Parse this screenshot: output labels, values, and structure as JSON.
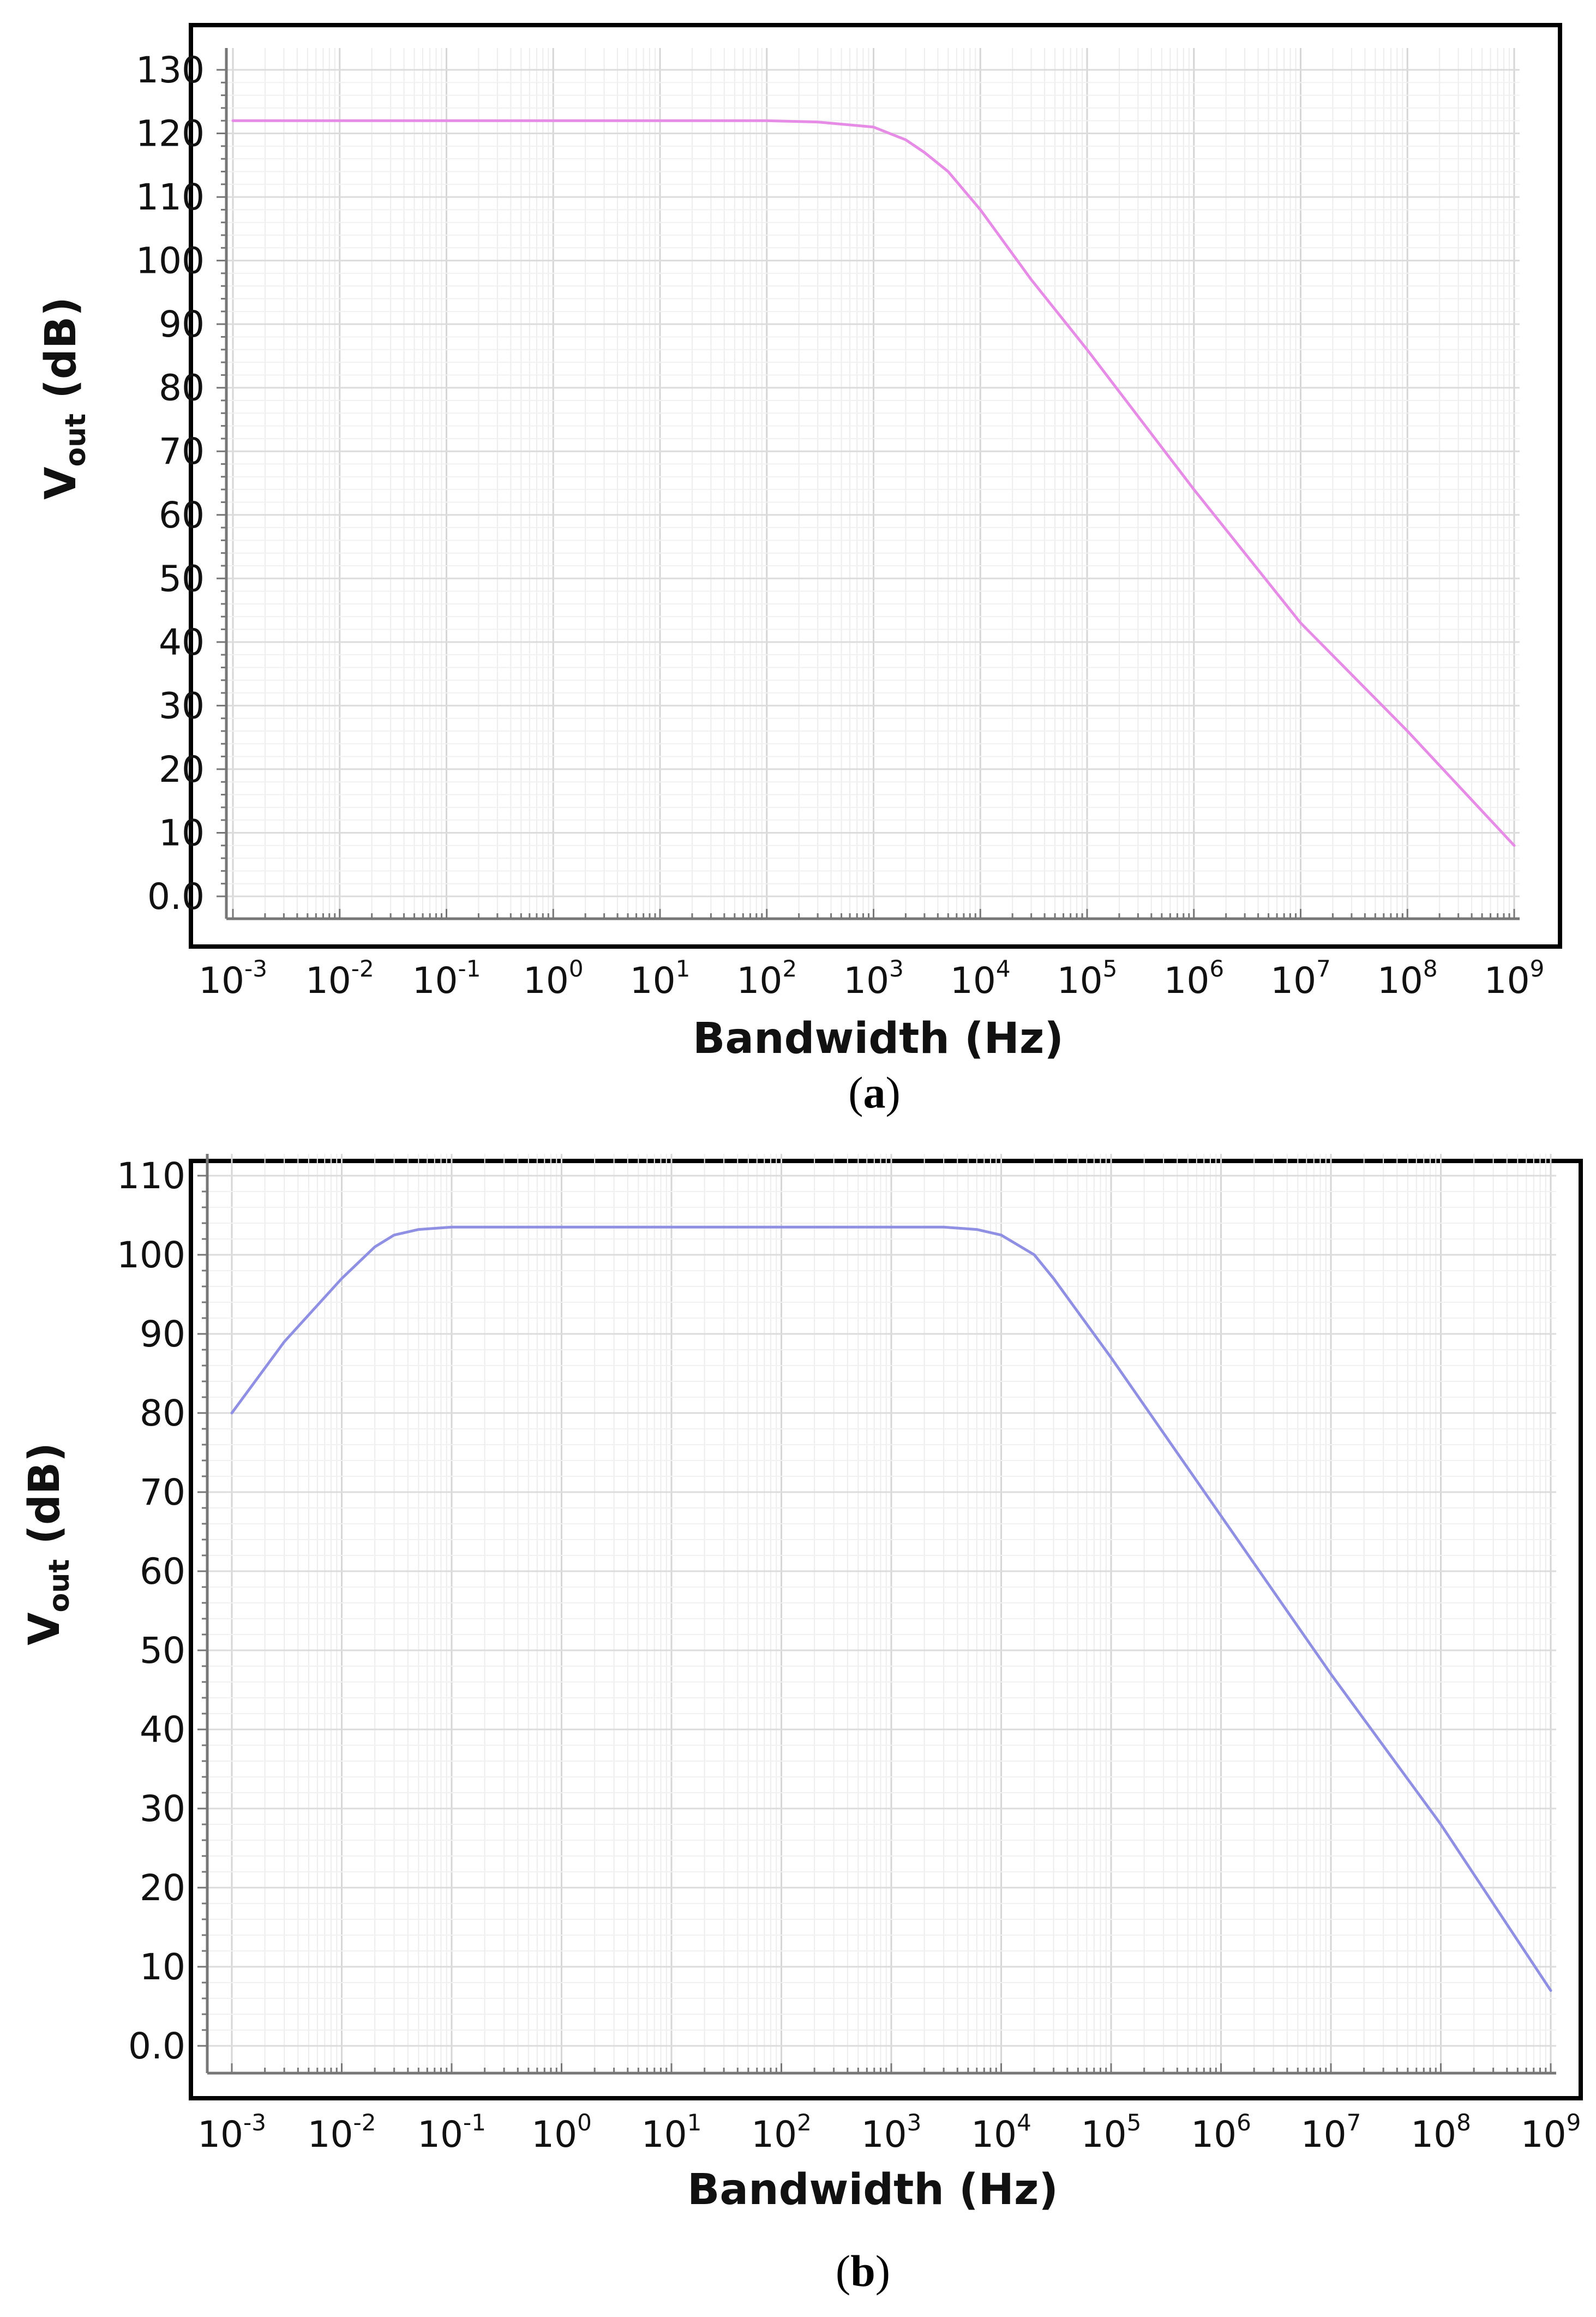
{
  "chart_data": [
    {
      "panel_label": "a",
      "type": "line",
      "xscale": "log",
      "xlim": [
        0.001,
        1000000000
      ],
      "ylim": [
        0,
        130
      ],
      "xlabel": "Bandwidth (Hz)",
      "ylabel": {
        "main": "V",
        "sub": "out",
        "rest": " (dB)"
      },
      "x_ticks": [
        {
          "base": "10",
          "exp": "-3"
        },
        {
          "base": "10",
          "exp": "-2"
        },
        {
          "base": "10",
          "exp": "-1"
        },
        {
          "base": "10",
          "exp": "0"
        },
        {
          "base": "10",
          "exp": "1"
        },
        {
          "base": "10",
          "exp": "2"
        },
        {
          "base": "10",
          "exp": "3"
        },
        {
          "base": "10",
          "exp": "4"
        },
        {
          "base": "10",
          "exp": "5"
        },
        {
          "base": "10",
          "exp": "6"
        },
        {
          "base": "10",
          "exp": "7"
        },
        {
          "base": "10",
          "exp": "8"
        },
        {
          "base": "10",
          "exp": "9"
        }
      ],
      "y_ticks": [
        {
          "value": 0,
          "label": "0.0"
        },
        {
          "value": 10,
          "label": "10"
        },
        {
          "value": 20,
          "label": "20"
        },
        {
          "value": 30,
          "label": "30"
        },
        {
          "value": 40,
          "label": "40"
        },
        {
          "value": 50,
          "label": "50"
        },
        {
          "value": 60,
          "label": "60"
        },
        {
          "value": 70,
          "label": "70"
        },
        {
          "value": 80,
          "label": "80"
        },
        {
          "value": 90,
          "label": "90"
        },
        {
          "value": 100,
          "label": "100"
        },
        {
          "value": 110,
          "label": "110"
        },
        {
          "value": 120,
          "label": "120"
        },
        {
          "value": 130,
          "label": "130"
        }
      ],
      "grid": true,
      "series": [
        {
          "color": "#e68be6",
          "x": [
            0.001,
            0.01,
            0.1,
            1,
            10,
            100,
            300,
            1000,
            2000,
            3000,
            5000,
            10000,
            30000,
            100000,
            1000000,
            10000000,
            100000000,
            1000000000
          ],
          "y": [
            122,
            122,
            122,
            122,
            122,
            122,
            121.8,
            121,
            119,
            117,
            114,
            108,
            97,
            86,
            64,
            43,
            26,
            8
          ]
        }
      ]
    },
    {
      "panel_label": "b",
      "type": "line",
      "xscale": "log",
      "xlim": [
        0.001,
        1000000000
      ],
      "ylim": [
        0,
        110
      ],
      "xlabel": "Bandwidth (Hz)",
      "ylabel": {
        "main": "V",
        "sub": "out",
        "rest": " (dB)"
      },
      "x_ticks": [
        {
          "base": "10",
          "exp": "-3"
        },
        {
          "base": "10",
          "exp": "-2"
        },
        {
          "base": "10",
          "exp": "-1"
        },
        {
          "base": "10",
          "exp": "0"
        },
        {
          "base": "10",
          "exp": "1"
        },
        {
          "base": "10",
          "exp": "2"
        },
        {
          "base": "10",
          "exp": "3"
        },
        {
          "base": "10",
          "exp": "4"
        },
        {
          "base": "10",
          "exp": "5"
        },
        {
          "base": "10",
          "exp": "6"
        },
        {
          "base": "10",
          "exp": "7"
        },
        {
          "base": "10",
          "exp": "8"
        },
        {
          "base": "10",
          "exp": "9"
        }
      ],
      "y_ticks": [
        {
          "value": 0,
          "label": "0.0"
        },
        {
          "value": 10,
          "label": "10"
        },
        {
          "value": 20,
          "label": "20"
        },
        {
          "value": 30,
          "label": "30"
        },
        {
          "value": 40,
          "label": "40"
        },
        {
          "value": 50,
          "label": "50"
        },
        {
          "value": 60,
          "label": "60"
        },
        {
          "value": 70,
          "label": "70"
        },
        {
          "value": 80,
          "label": "80"
        },
        {
          "value": 90,
          "label": "90"
        },
        {
          "value": 100,
          "label": "100"
        },
        {
          "value": 110,
          "label": "110"
        }
      ],
      "grid": true,
      "series": [
        {
          "color": "#8f8fe3",
          "x": [
            0.001,
            0.003,
            0.01,
            0.02,
            0.03,
            0.05,
            0.1,
            1,
            10,
            100,
            1000,
            3000,
            6000,
            10000,
            20000,
            30000,
            100000,
            1000000,
            10000000,
            100000000,
            1000000000
          ],
          "y": [
            80,
            89,
            97,
            101,
            102.5,
            103.2,
            103.5,
            103.5,
            103.5,
            103.5,
            103.5,
            103.5,
            103.2,
            102.5,
            100,
            97,
            87,
            67,
            47,
            28,
            7
          ]
        }
      ]
    }
  ]
}
